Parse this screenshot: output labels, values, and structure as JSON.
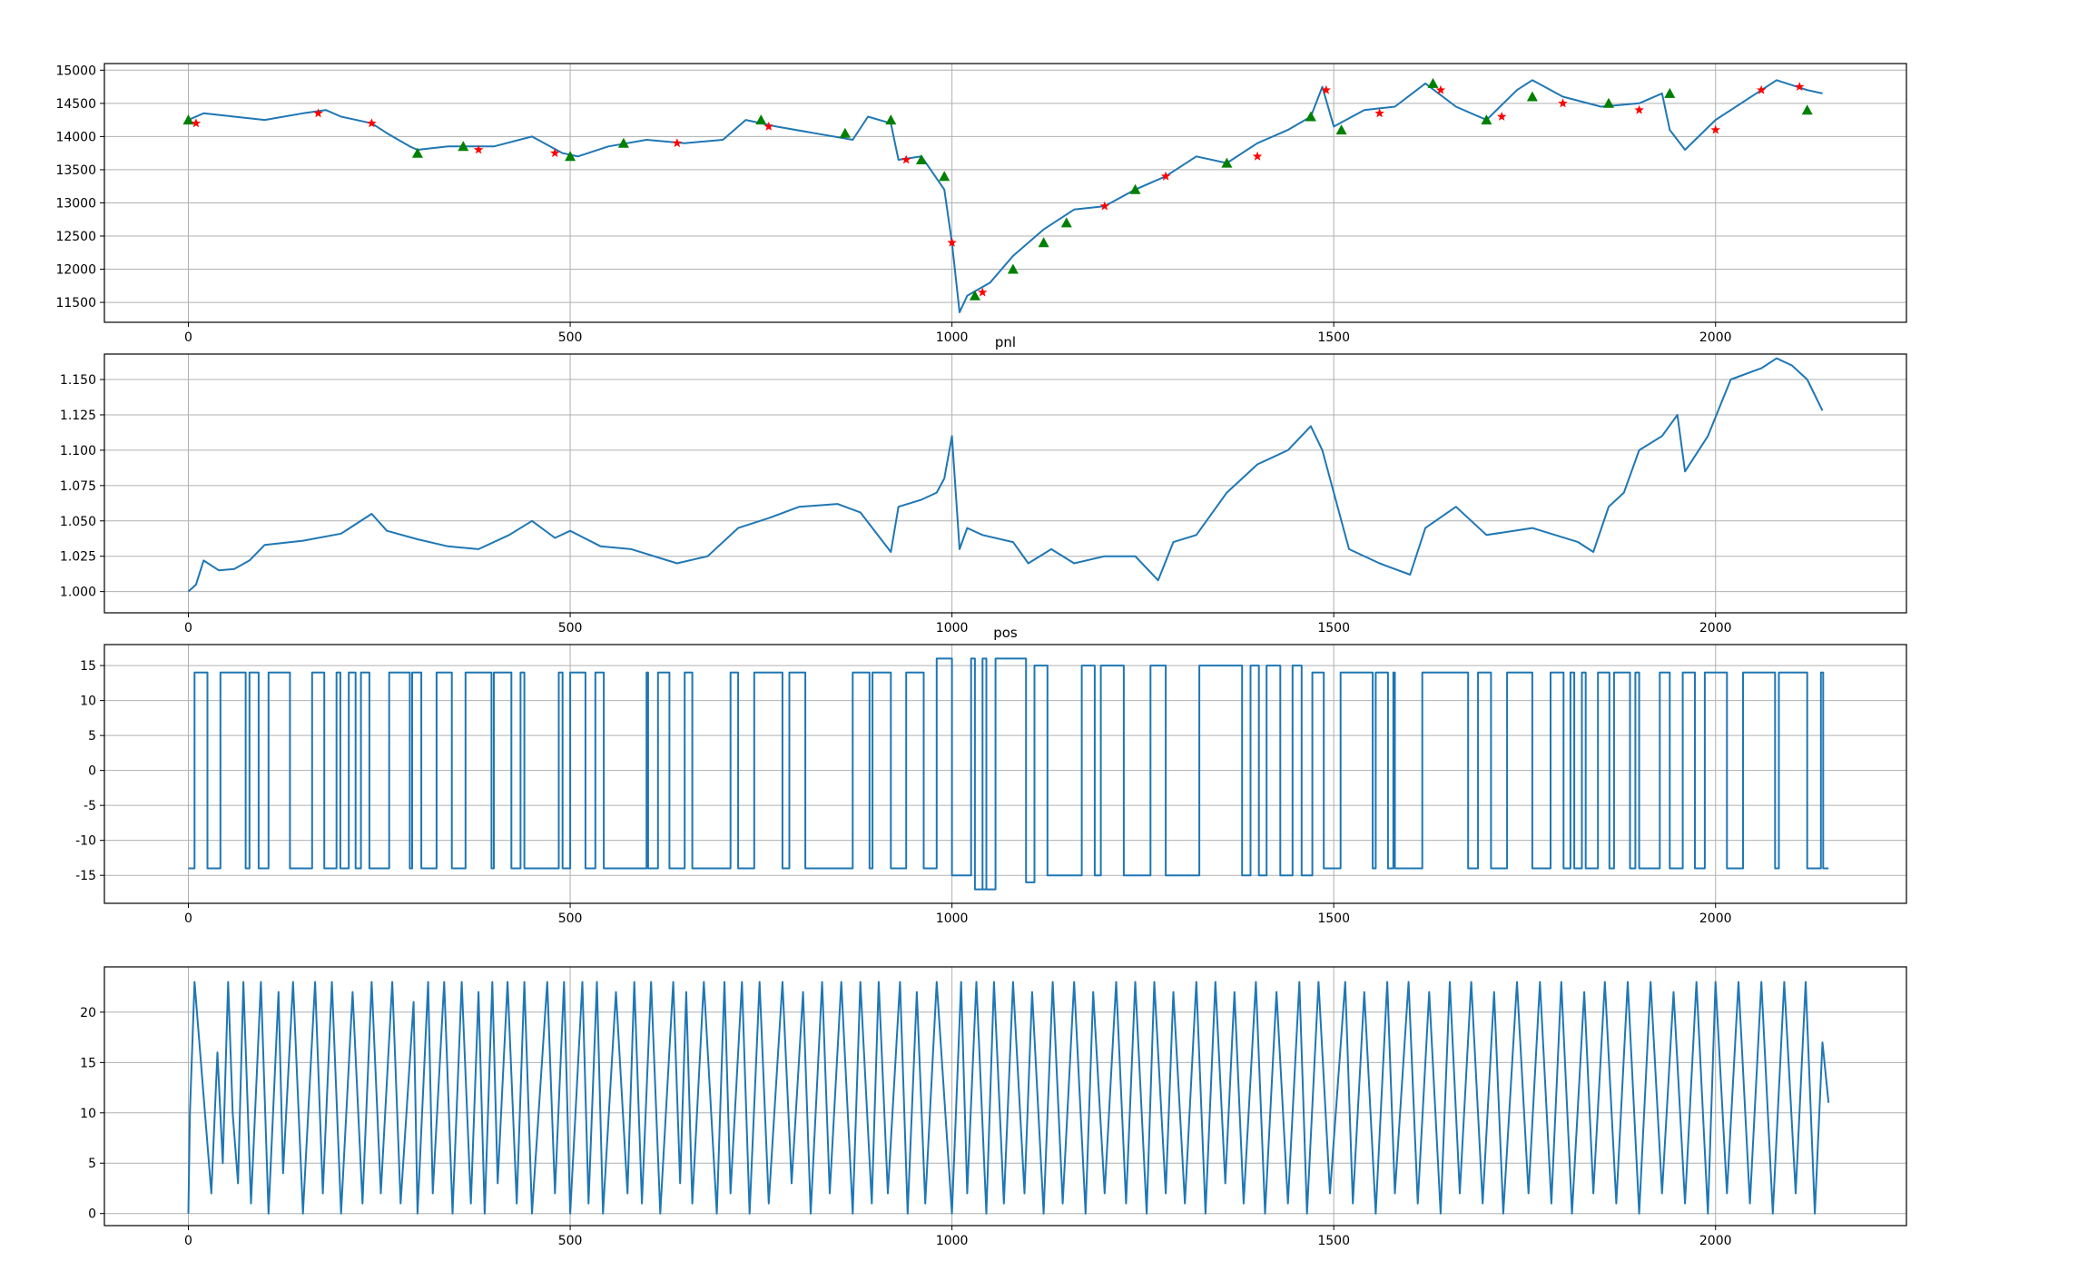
{
  "chart_data": [
    {
      "type": "line",
      "title": "",
      "xlabel": "",
      "ylabel": "",
      "xlim": [
        -110,
        2250
      ],
      "ylim": [
        11200,
        15100
      ],
      "grid": true,
      "xticks": [
        0,
        500,
        1000,
        1500,
        2000
      ],
      "yticks": [
        11500,
        12000,
        12500,
        13000,
        13500,
        14000,
        14500,
        15000
      ],
      "color": "#1f77b4",
      "markers": {
        "buy": {
          "symbol": "triangle-up",
          "color": "#008000"
        },
        "sell": {
          "symbol": "star",
          "color": "#ff0000"
        }
      },
      "series": [
        {
          "x": [
            0,
            20,
            60,
            100,
            150,
            180,
            200,
            240,
            260,
            290,
            300,
            340,
            400,
            450,
            490,
            510,
            550,
            600,
            650,
            700,
            730,
            770,
            820,
            870,
            890,
            920,
            930,
            960,
            990,
            1000,
            1010,
            1020,
            1050,
            1080,
            1120,
            1160,
            1200,
            1240,
            1280,
            1320,
            1360,
            1400,
            1440,
            1470,
            1485,
            1500,
            1540,
            1580,
            1620,
            1660,
            1700,
            1740,
            1760,
            1800,
            1850,
            1900,
            1930,
            1940,
            1960,
            2000,
            2040,
            2080,
            2120,
            2140
          ],
          "values": [
            14250,
            14350,
            14300,
            14250,
            14350,
            14400,
            14300,
            14200,
            14050,
            13850,
            13800,
            13850,
            13850,
            14000,
            13750,
            13700,
            13850,
            13950,
            13900,
            13950,
            14250,
            14150,
            14050,
            13950,
            14300,
            14200,
            13650,
            13700,
            13200,
            12400,
            11350,
            11600,
            11800,
            12200,
            12600,
            12900,
            12950,
            13200,
            13400,
            13700,
            13600,
            13900,
            14100,
            14300,
            14750,
            14150,
            14400,
            14450,
            14800,
            14450,
            14250,
            14700,
            14850,
            14600,
            14450,
            14500,
            14650,
            14100,
            13800,
            14250,
            14550,
            14850,
            14700,
            14650
          ]
        }
      ],
      "buys": [
        [
          0,
          14250
        ],
        [
          300,
          13750
        ],
        [
          360,
          13850
        ],
        [
          500,
          13700
        ],
        [
          570,
          13900
        ],
        [
          750,
          14250
        ],
        [
          860,
          14050
        ],
        [
          920,
          14250
        ],
        [
          960,
          13650
        ],
        [
          990,
          13400
        ],
        [
          1030,
          11600
        ],
        [
          1080,
          12000
        ],
        [
          1120,
          12400
        ],
        [
          1150,
          12700
        ],
        [
          1240,
          13200
        ],
        [
          1360,
          13600
        ],
        [
          1470,
          14300
        ],
        [
          1510,
          14100
        ],
        [
          1630,
          14800
        ],
        [
          1700,
          14250
        ],
        [
          1760,
          14600
        ],
        [
          1860,
          14500
        ],
        [
          1940,
          14650
        ],
        [
          2120,
          14400
        ]
      ],
      "sells": [
        [
          10,
          14200
        ],
        [
          170,
          14350
        ],
        [
          240,
          14200
        ],
        [
          380,
          13800
        ],
        [
          480,
          13750
        ],
        [
          640,
          13900
        ],
        [
          760,
          14150
        ],
        [
          940,
          13650
        ],
        [
          1000,
          12400
        ],
        [
          1040,
          11650
        ],
        [
          1200,
          12950
        ],
        [
          1280,
          13400
        ],
        [
          1400,
          13700
        ],
        [
          1490,
          14700
        ],
        [
          1560,
          14350
        ],
        [
          1640,
          14700
        ],
        [
          1720,
          14300
        ],
        [
          1800,
          14500
        ],
        [
          1900,
          14400
        ],
        [
          2000,
          14100
        ],
        [
          2060,
          14700
        ],
        [
          2110,
          14750
        ]
      ]
    },
    {
      "type": "line",
      "title": "pnl",
      "xlabel": "",
      "ylabel": "",
      "xlim": [
        -110,
        2250
      ],
      "ylim": [
        0.985,
        1.168
      ],
      "grid": true,
      "xticks": [
        0,
        500,
        1000,
        1500,
        2000
      ],
      "yticks": [
        "1.000",
        "1.025",
        "1.050",
        "1.075",
        "1.100",
        "1.125",
        "1.150"
      ],
      "color": "#1f77b4",
      "series": [
        {
          "x": [
            0,
            10,
            20,
            40,
            60,
            80,
            100,
            150,
            200,
            240,
            260,
            300,
            340,
            380,
            420,
            450,
            480,
            500,
            540,
            580,
            640,
            680,
            720,
            760,
            800,
            850,
            880,
            920,
            930,
            960,
            980,
            990,
            1000,
            1010,
            1020,
            1040,
            1080,
            1100,
            1130,
            1160,
            1200,
            1240,
            1270,
            1290,
            1320,
            1360,
            1400,
            1440,
            1470,
            1485,
            1500,
            1520,
            1560,
            1600,
            1620,
            1660,
            1700,
            1760,
            1820,
            1840,
            1860,
            1880,
            1900,
            1930,
            1950,
            1960,
            1990,
            2020,
            2060,
            2080,
            2100,
            2120,
            2140
          ],
          "values": [
            1.0,
            1.005,
            1.022,
            1.015,
            1.016,
            1.022,
            1.033,
            1.036,
            1.041,
            1.055,
            1.043,
            1.037,
            1.032,
            1.03,
            1.04,
            1.05,
            1.038,
            1.043,
            1.032,
            1.03,
            1.02,
            1.025,
            1.045,
            1.052,
            1.06,
            1.062,
            1.056,
            1.028,
            1.06,
            1.065,
            1.07,
            1.08,
            1.11,
            1.03,
            1.045,
            1.04,
            1.035,
            1.02,
            1.03,
            1.02,
            1.025,
            1.025,
            1.008,
            1.035,
            1.04,
            1.07,
            1.09,
            1.1,
            1.117,
            1.1,
            1.07,
            1.03,
            1.02,
            1.012,
            1.045,
            1.06,
            1.04,
            1.045,
            1.035,
            1.028,
            1.06,
            1.07,
            1.1,
            1.11,
            1.125,
            1.085,
            1.11,
            1.15,
            1.158,
            1.165,
            1.16,
            1.15,
            1.128
          ]
        }
      ]
    },
    {
      "type": "line",
      "title": "pos",
      "xlabel": "",
      "ylabel": "",
      "xlim": [
        -110,
        2250
      ],
      "ylim": [
        -19,
        18
      ],
      "grid": true,
      "xticks": [
        0,
        500,
        1000,
        1500,
        2000
      ],
      "yticks": [
        -15,
        -10,
        -5,
        0,
        5,
        10,
        15
      ],
      "color": "#1f77b4",
      "step": "post",
      "series": [
        {
          "x": [
            0,
            8,
            25,
            42,
            75,
            80,
            92,
            105,
            133,
            162,
            178,
            194,
            199,
            210,
            219,
            226,
            237,
            263,
            290,
            293,
            305,
            325,
            345,
            363,
            397,
            400,
            423,
            435,
            440,
            485,
            490,
            500,
            520,
            533,
            544,
            600,
            602,
            615,
            630,
            650,
            660,
            710,
            720,
            741,
            778,
            787,
            808,
            870,
            892,
            896,
            920,
            940,
            963,
            980,
            1000,
            1025,
            1030,
            1045,
            1040,
            1057,
            1097,
            1108,
            1125,
            1170,
            1187,
            1195,
            1225,
            1260,
            1280,
            1324,
            1380,
            1391,
            1402,
            1412,
            1430,
            1446,
            1458,
            1472,
            1487,
            1509,
            1551,
            1555,
            1571,
            1578,
            1580,
            1616,
            1676,
            1689,
            1706,
            1727,
            1760,
            1784,
            1801,
            1810,
            1815,
            1825,
            1830,
            1846,
            1861,
            1867,
            1888,
            1895,
            1900,
            1927,
            1940,
            1957,
            1973,
            1986,
            2015,
            2036,
            2078,
            2083,
            2120,
            2138,
            2141,
            2148
          ],
          "values": [
            -14,
            14,
            -14,
            14,
            -14,
            14,
            -14,
            14,
            -14,
            14,
            -14,
            14,
            -14,
            14,
            -14,
            14,
            -14,
            14,
            -14,
            14,
            -14,
            14,
            -14,
            14,
            -14,
            14,
            -14,
            14,
            -14,
            14,
            -14,
            14,
            -14,
            14,
            -14,
            14,
            -14,
            14,
            -14,
            14,
            -14,
            14,
            -14,
            14,
            -14,
            14,
            -14,
            14,
            -14,
            14,
            -14,
            14,
            -14,
            16,
            -15,
            16,
            -17,
            16,
            -17,
            16,
            -16,
            15,
            -15,
            15,
            -15,
            15,
            -15,
            15,
            -15,
            15,
            -15,
            15,
            -15,
            15,
            -15,
            15,
            -15,
            14,
            -14,
            14,
            -14,
            14,
            -14,
            14,
            -14,
            14,
            -14,
            14,
            -14,
            14,
            -14,
            14,
            -14,
            14,
            -14,
            14,
            -14,
            14,
            -14,
            14,
            -14,
            14,
            -14,
            14,
            -14,
            14,
            -14,
            14,
            -14,
            14,
            -14,
            14,
            -14,
            14,
            -14,
            -14
          ]
        }
      ]
    },
    {
      "type": "line",
      "title": "",
      "xlabel": "",
      "ylabel": "",
      "xlim": [
        -110,
        2250
      ],
      "ylim": [
        -1.2,
        24.5
      ],
      "grid": true,
      "xticks": [
        0,
        500,
        1000,
        1500,
        2000
      ],
      "yticks": [
        0,
        5,
        10,
        15,
        20
      ],
      "color": "#1f77b4",
      "series": [
        {
          "x": [
            0,
            2,
            8,
            30,
            38,
            45,
            52,
            58,
            65,
            72,
            82,
            95,
            105,
            118,
            124,
            137,
            150,
            166,
            176,
            188,
            200,
            215,
            228,
            240,
            252,
            267,
            278,
            295,
            300,
            314,
            320,
            335,
            346,
            358,
            370,
            380,
            388,
            398,
            405,
            418,
            430,
            440,
            450,
            470,
            480,
            492,
            500,
            516,
            524,
            535,
            543,
            560,
            575,
            584,
            594,
            606,
            618,
            635,
            644,
            652,
            660,
            675,
            692,
            702,
            710,
            725,
            735,
            748,
            760,
            778,
            790,
            805,
            815,
            830,
            840,
            855,
            870,
            880,
            895,
            904,
            916,
            932,
            942,
            954,
            965,
            980,
            1000,
            1012,
            1020,
            1032,
            1045,
            1055,
            1068,
            1080,
            1095,
            1105,
            1120,
            1132,
            1145,
            1160,
            1175,
            1185,
            1200,
            1215,
            1228,
            1240,
            1255,
            1265,
            1280,
            1290,
            1305,
            1320,
            1332,
            1345,
            1358,
            1370,
            1382,
            1398,
            1410,
            1425,
            1440,
            1455,
            1465,
            1480,
            1495,
            1515,
            1525,
            1540,
            1555,
            1570,
            1580,
            1598,
            1610,
            1625,
            1640,
            1652,
            1665,
            1680,
            1695,
            1710,
            1722,
            1740,
            1755,
            1770,
            1785,
            1798,
            1812,
            1828,
            1840,
            1855,
            1870,
            1885,
            1900,
            1915,
            1930,
            1945,
            1960,
            1975,
            1990,
            2000,
            2015,
            2030,
            2045,
            2060,
            2075,
            2090,
            2105,
            2118,
            2130,
            2140,
            2148
          ],
          "values": [
            0,
            10,
            23,
            2,
            16,
            5,
            23,
            10,
            3,
            23,
            1,
            23,
            0,
            22,
            4,
            23,
            0,
            23,
            2,
            23,
            0,
            22,
            1,
            23,
            2,
            23,
            1,
            21,
            0,
            23,
            2,
            23,
            0,
            23,
            1,
            22,
            0,
            23,
            3,
            23,
            1,
            23,
            0,
            23,
            2,
            23,
            0,
            23,
            1,
            23,
            0,
            22,
            2,
            23,
            1,
            23,
            0,
            23,
            3,
            22,
            1,
            23,
            0,
            23,
            2,
            23,
            0,
            23,
            1,
            23,
            3,
            22,
            0,
            23,
            2,
            23,
            0,
            23,
            1,
            23,
            2,
            23,
            0,
            22,
            1,
            23,
            0,
            23,
            2,
            23,
            0,
            23,
            1,
            23,
            2,
            22,
            0,
            23,
            1,
            23,
            0,
            22,
            2,
            23,
            1,
            23,
            0,
            23,
            2,
            22,
            1,
            23,
            0,
            23,
            3,
            22,
            1,
            23,
            0,
            22,
            1,
            23,
            0,
            23,
            2,
            23,
            1,
            22,
            0,
            23,
            2,
            23,
            1,
            22,
            0,
            23,
            2,
            23,
            1,
            22,
            0,
            23,
            2,
            23,
            1,
            23,
            0,
            22,
            2,
            23,
            1,
            23,
            0,
            23,
            2,
            22,
            1,
            23,
            0,
            23,
            2,
            23,
            1,
            23,
            0,
            23,
            2,
            23,
            0,
            17,
            11
          ]
        }
      ]
    }
  ]
}
